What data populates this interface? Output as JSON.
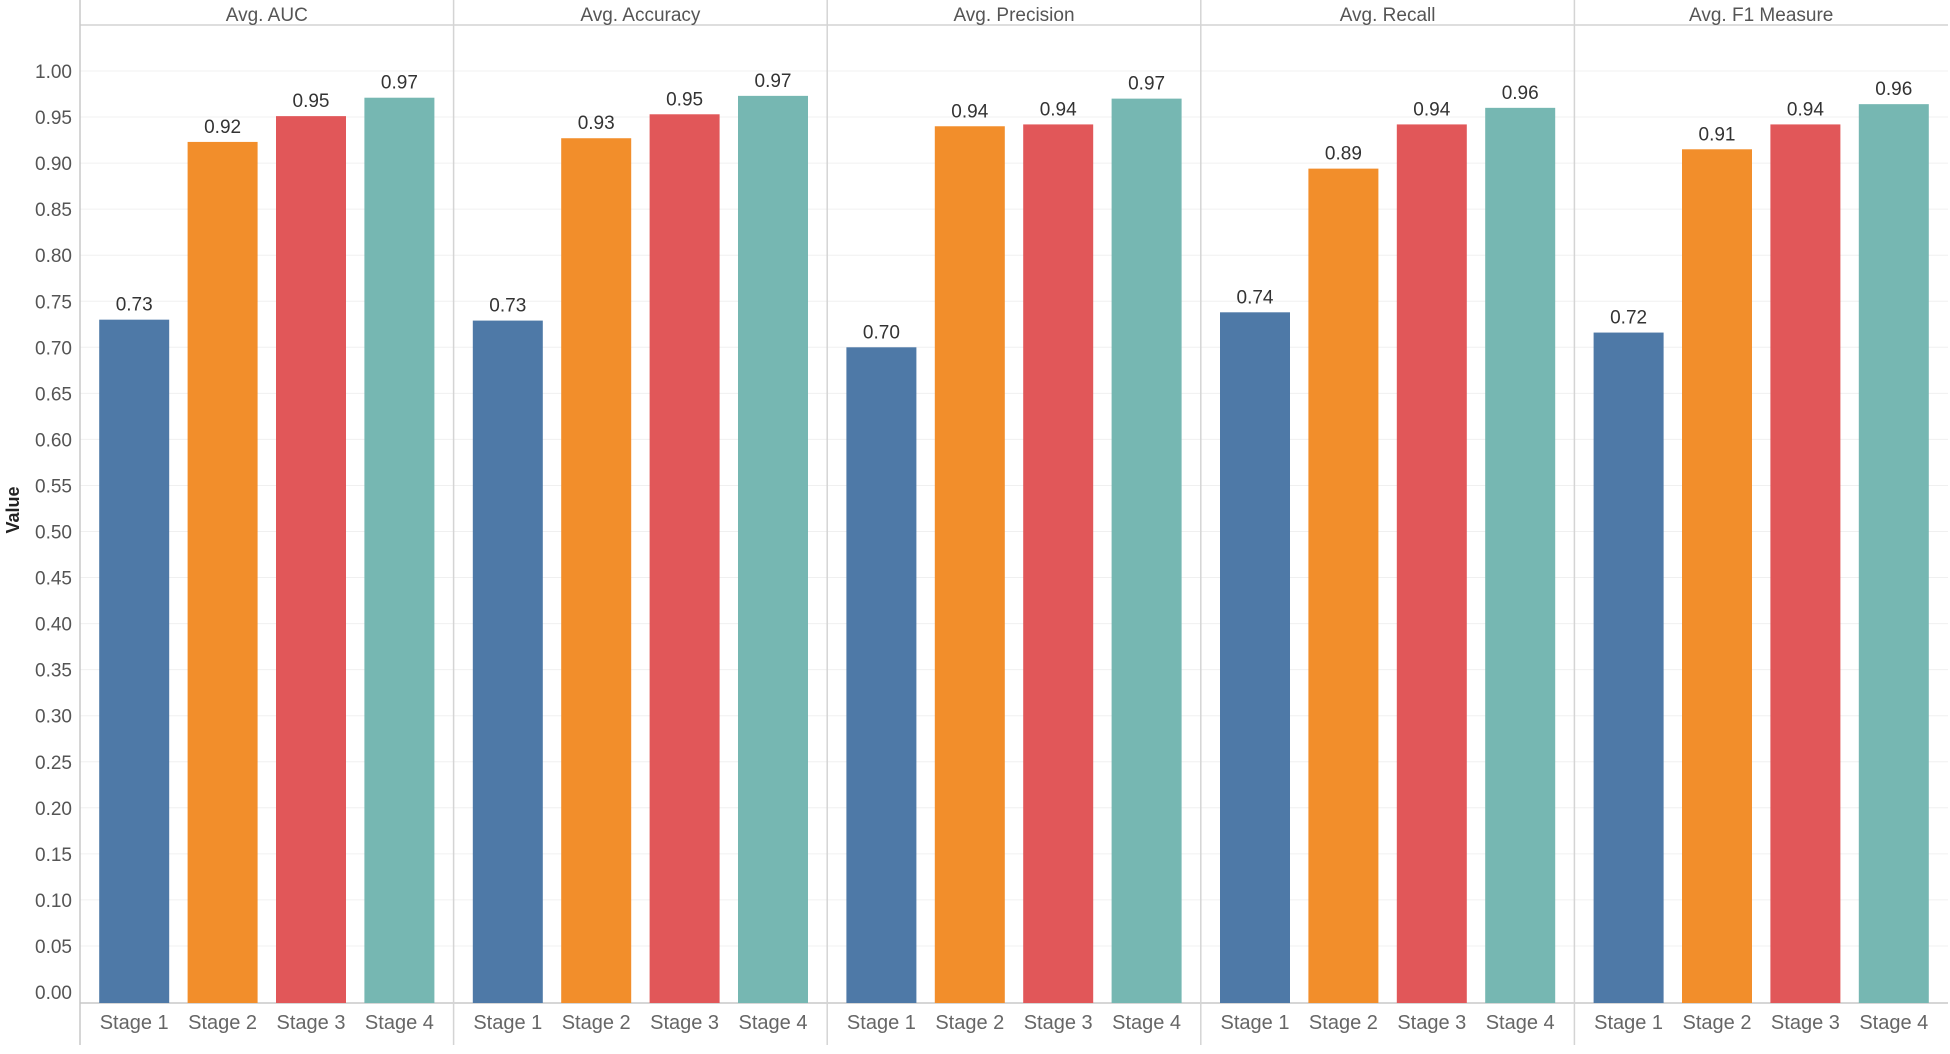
{
  "chart_data": {
    "type": "bar",
    "ylabel": "Value",
    "ylim": [
      0,
      1.05
    ],
    "yticks": [
      "0.00",
      "0.05",
      "0.10",
      "0.15",
      "0.20",
      "0.25",
      "0.30",
      "0.35",
      "0.40",
      "0.45",
      "0.50",
      "0.55",
      "0.60",
      "0.65",
      "0.70",
      "0.75",
      "0.80",
      "0.85",
      "0.90",
      "0.95",
      "1.00"
    ],
    "categories": [
      "Stage 1",
      "Stage 2",
      "Stage 3",
      "Stage 4"
    ],
    "colors": [
      "#4e79a7",
      "#f28e2b",
      "#e15759",
      "#76b7b2"
    ],
    "panels": [
      {
        "title": "Avg. AUC",
        "values": [
          0.73,
          0.923,
          0.951,
          0.971
        ],
        "labels": [
          "0.73",
          "0.92",
          "0.95",
          "0.97"
        ]
      },
      {
        "title": "Avg. Accuracy",
        "values": [
          0.729,
          0.927,
          0.953,
          0.973
        ],
        "labels": [
          "0.73",
          "0.93",
          "0.95",
          "0.97"
        ]
      },
      {
        "title": "Avg. Precision",
        "values": [
          0.7,
          0.94,
          0.942,
          0.97
        ],
        "labels": [
          "0.70",
          "0.94",
          "0.94",
          "0.97"
        ]
      },
      {
        "title": "Avg. Recall",
        "values": [
          0.738,
          0.894,
          0.942,
          0.96
        ],
        "labels": [
          "0.74",
          "0.89",
          "0.94",
          "0.96"
        ]
      },
      {
        "title": "Avg. F1 Measure",
        "values": [
          0.716,
          0.915,
          0.942,
          0.964
        ],
        "labels": [
          "0.72",
          "0.91",
          "0.94",
          "0.96"
        ]
      }
    ]
  }
}
